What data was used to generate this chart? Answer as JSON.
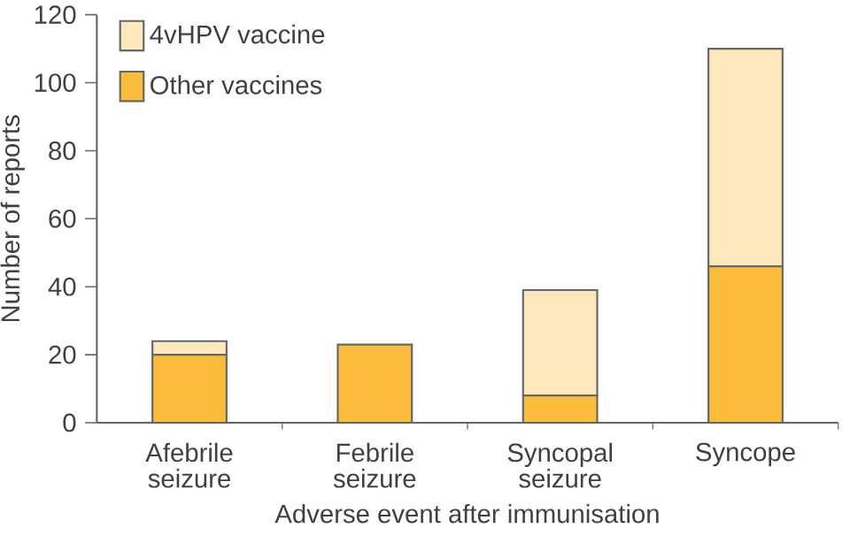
{
  "chart_data": {
    "type": "bar",
    "stacked": true,
    "xlabel": "Adverse event after immunisation",
    "ylabel": "Number of reports",
    "categories": [
      "Afebrile seizure",
      "Febrile seizure",
      "Syncopal seizure",
      "Syncope"
    ],
    "series": [
      {
        "name": "Other vaccines",
        "color": "#fbbc3c",
        "values": [
          20,
          23,
          8,
          46
        ]
      },
      {
        "name": "4vHPV vaccine",
        "color": "#fde8bc",
        "values": [
          4,
          0,
          31,
          64
        ]
      }
    ],
    "ylim": [
      0,
      120
    ],
    "yticks": [
      0,
      20,
      40,
      60,
      80,
      100,
      120
    ],
    "grid": false,
    "legend": "top left"
  }
}
